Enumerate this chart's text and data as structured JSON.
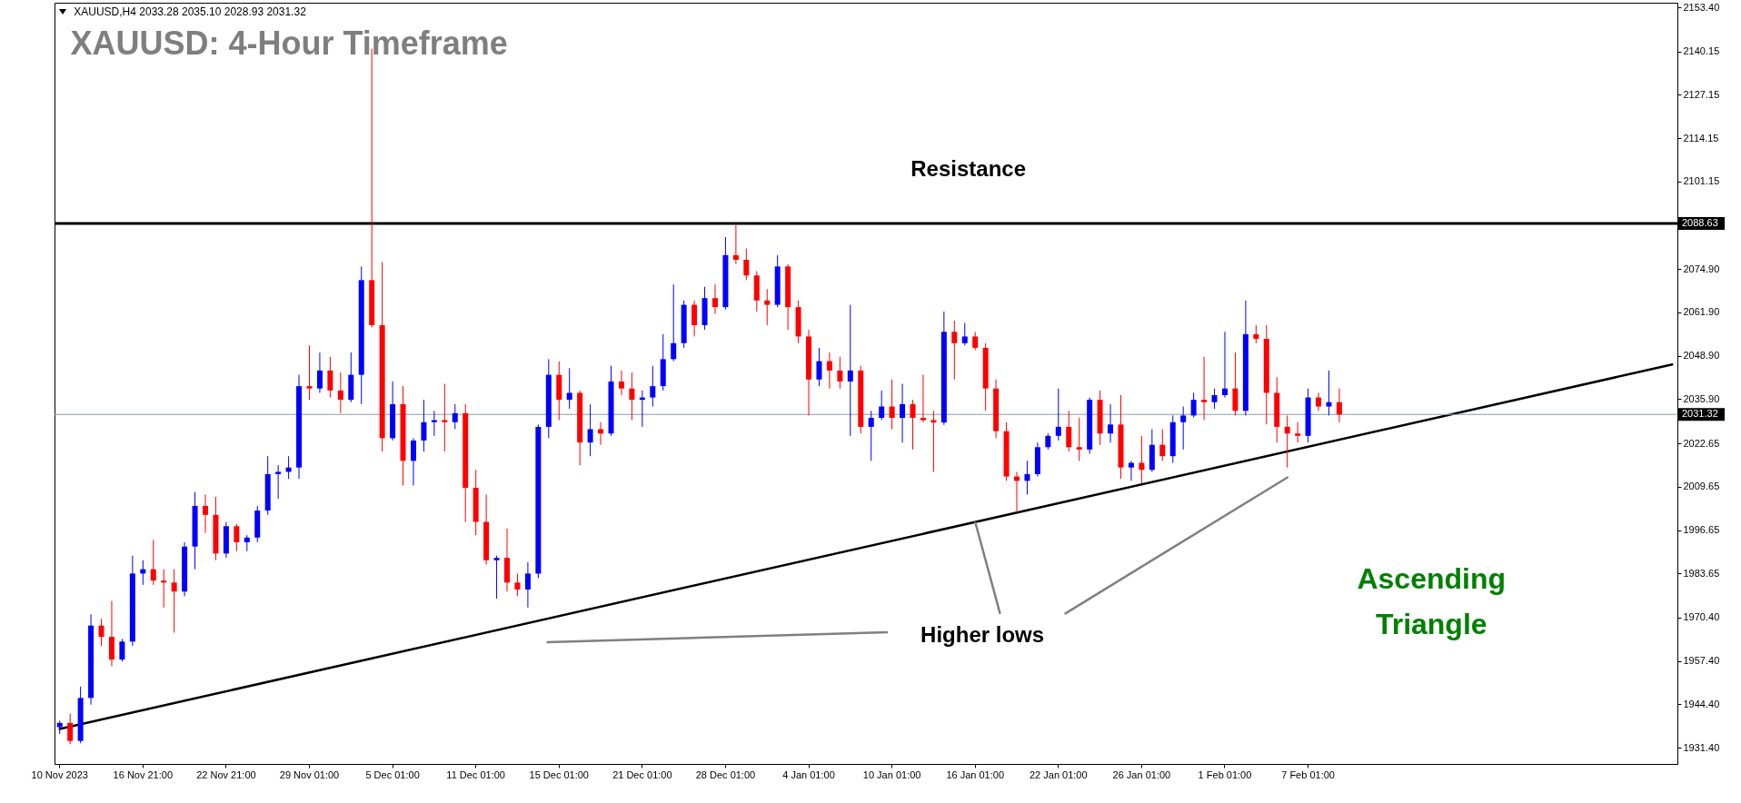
{
  "chart_data": {
    "type": "candlestick",
    "title": "XAUUSD: 4-Hour Timeframe",
    "annotations": [
      "XAUUSD,H4  2033.28 2035.10 2028.93 2031.32",
      "Resistance",
      {
        "text": "Higher lows",
        "x": "16 Jan 01:00",
        "y": 1999.1
      },
      "Ascending Triangle"
    ],
    "categories": [
      "10 Nov 2023",
      null,
      null,
      null,
      null,
      null,
      null,
      null,
      "16 Nov 21:00",
      null,
      null,
      null,
      null,
      null,
      null,
      null,
      "22 Nov 21:00",
      null,
      null,
      null,
      null,
      null,
      null,
      null,
      "29 Nov 01:00",
      null,
      null,
      null,
      null,
      null,
      null,
      null,
      "5 Dec 01:00",
      null,
      null,
      null,
      null,
      null,
      null,
      null,
      "11 Dec 01:00",
      null,
      null,
      null,
      null,
      null,
      null,
      null,
      "15 Dec 01:00",
      null,
      null,
      null,
      null,
      null,
      null,
      null,
      "21 Dec 01:00",
      null,
      null,
      null,
      null,
      null,
      null,
      null,
      "28 Dec 01:00",
      null,
      null,
      null,
      null,
      null,
      null,
      null,
      "4 Jan 01:00",
      null,
      null,
      null,
      null,
      null,
      null,
      null,
      "10 Jan 01:00",
      null,
      null,
      null,
      null,
      null,
      null,
      null,
      "16 Jan 01:00",
      null,
      null,
      null,
      null,
      null,
      null,
      null,
      "22 Jan 01:00",
      null,
      null,
      null,
      null,
      null,
      null,
      null,
      "26 Jan 01:00",
      null,
      null,
      null,
      null,
      null,
      null,
      null,
      "1 Feb 01:00",
      null,
      null,
      null,
      null,
      null,
      null,
      null,
      "7 Feb 01:00",
      null,
      null,
      null,
      null,
      null,
      null,
      null,
      null,
      null,
      null,
      null,
      null,
      null,
      null,
      null,
      null,
      null,
      null,
      null,
      null,
      null,
      null,
      null,
      null,
      null,
      null,
      null,
      null,
      null,
      null,
      null,
      null,
      null,
      null,
      null
    ],
    "ylim": [
      1926.5,
      2154.8
    ],
    "yticks": [
      {
        "value": 1931.4,
        "label": "1931.40"
      },
      {
        "value": 1944.4,
        "label": "1944.40"
      },
      {
        "value": 1957.4,
        "label": "1957.40"
      },
      {
        "value": 1970.4,
        "label": "1970.40"
      },
      1983.65,
      1996.65,
      2009.65,
      2022.65,
      {
        "value": 2035.9,
        "label": "2035.90"
      },
      {
        "value": 2048.9,
        "label": "2048.90"
      },
      {
        "value": 2061.9,
        "label": "2061.90"
      },
      {
        "value": 2074.9,
        "label": "2074.90"
      },
      2101.15,
      2114.15,
      2127.15,
      2140.15,
      {
        "value": 2153.4,
        "label": "2153.40"
      }
    ],
    "ohlc": [
      [
        1937.5,
        1939.5,
        1935.5,
        1938.8
      ],
      [
        1938.8,
        1941.6,
        1932.4,
        1933.4
      ],
      [
        1933.4,
        1949.7,
        1932.7,
        1946.3
      ],
      [
        1946.3,
        1971.4,
        1944.3,
        1968.0
      ],
      [
        1968.0,
        1970.0,
        1961.9,
        1964.6
      ],
      [
        1964.6,
        1975.4,
        1955.8,
        1957.8
      ],
      [
        1957.8,
        1964.0,
        1957.2,
        1963.2
      ],
      [
        1963.2,
        1989.0,
        1961.9,
        1983.6
      ],
      [
        1983.6,
        1987.6,
        1980.2,
        1984.9
      ],
      [
        1984.9,
        1993.7,
        1980.2,
        1981.5
      ],
      [
        1981.5,
        1984.9,
        1973.4,
        1980.9
      ],
      [
        1980.9,
        1984.9,
        1965.9,
        1978.2
      ],
      [
        1978.2,
        1993.0,
        1976.8,
        1991.7
      ],
      [
        1991.7,
        2008.0,
        1984.9,
        2003.9
      ],
      [
        2003.9,
        2007.3,
        1995.8,
        2001.2
      ],
      [
        2001.2,
        2006.6,
        1987.6,
        1989.6
      ],
      [
        1989.6,
        1999.1,
        1988.3,
        1997.8
      ],
      [
        1997.8,
        1998.5,
        1990.3,
        1993.0
      ],
      [
        1993.0,
        1995.1,
        1990.3,
        1994.4
      ],
      [
        1994.4,
        2003.9,
        1993.0,
        2002.5
      ],
      [
        2002.5,
        2018.8,
        2001.2,
        2013.4
      ],
      [
        2013.4,
        2016.1,
        2006.0,
        2014.1
      ],
      [
        2014.1,
        2018.8,
        2012.0,
        2015.4
      ],
      [
        2015.4,
        2043.2,
        2012.0,
        2039.8
      ],
      [
        2039.8,
        2052.0,
        2035.7,
        2039.1
      ],
      [
        2039.1,
        2049.9,
        2037.8,
        2044.5
      ],
      [
        2044.5,
        2048.6,
        2036.4,
        2038.5
      ],
      [
        2038.5,
        2043.9,
        2031.7,
        2035.7
      ],
      [
        2035.7,
        2049.9,
        2035.0,
        2043.2
      ],
      [
        2043.2,
        2075.7,
        2034.4,
        2071.6
      ],
      [
        2071.6,
        2141.0,
        2057.4,
        2058.1
      ],
      [
        2058.1,
        2077.0,
        2020.2,
        2024.2
      ],
      [
        2024.2,
        2041.2,
        2023.5,
        2034.4
      ],
      [
        2034.4,
        2039.8,
        2010.0,
        2017.4
      ],
      [
        2017.4,
        2024.2,
        2010.0,
        2023.5
      ],
      [
        2023.5,
        2035.7,
        2020.2,
        2029.0
      ],
      [
        2029.0,
        2032.4,
        2024.9,
        2029.6
      ],
      [
        2029.6,
        2040.5,
        2020.2,
        2029.0
      ],
      [
        2029.0,
        2034.4,
        2026.9,
        2031.7
      ],
      [
        2031.7,
        2034.4,
        1999.1,
        2009.3
      ],
      [
        2009.3,
        2014.7,
        1995.1,
        1999.1
      ],
      [
        1999.1,
        2007.3,
        1986.3,
        1987.6
      ],
      [
        1987.6,
        1989.0,
        1976.1,
        1988.3
      ],
      [
        1988.3,
        1997.1,
        1978.2,
        1980.9
      ],
      [
        1980.9,
        1983.6,
        1976.8,
        1978.8
      ],
      [
        1978.8,
        1987.0,
        1973.4,
        1983.6
      ],
      [
        1983.6,
        2028.3,
        1982.2,
        2027.6
      ],
      [
        2027.6,
        2047.9,
        2024.2,
        2043.2
      ],
      [
        2043.2,
        2047.2,
        2029.6,
        2035.7
      ],
      [
        2035.7,
        2045.2,
        2033.0,
        2037.8
      ],
      [
        2037.8,
        2038.5,
        2016.1,
        2022.9
      ],
      [
        2022.9,
        2034.4,
        2018.8,
        2026.9
      ],
      [
        2026.9,
        2029.0,
        2022.2,
        2025.6
      ],
      [
        2025.6,
        2045.9,
        2024.9,
        2041.2
      ],
      [
        2041.2,
        2044.5,
        2037.1,
        2039.1
      ],
      [
        2039.1,
        2043.9,
        2029.6,
        2035.7
      ],
      [
        2035.7,
        2038.5,
        2027.6,
        2036.4
      ],
      [
        2036.4,
        2045.9,
        2033.7,
        2039.8
      ],
      [
        2039.8,
        2055.4,
        2038.5,
        2047.9
      ],
      [
        2047.9,
        2070.3,
        2047.3,
        2052.7
      ],
      [
        2052.7,
        2065.5,
        2051.3,
        2064.2
      ],
      [
        2064.2,
        2065.5,
        2054.7,
        2058.1
      ],
      [
        2058.1,
        2069.6,
        2056.7,
        2066.2
      ],
      [
        2066.2,
        2070.3,
        2061.5,
        2063.5
      ],
      [
        2063.5,
        2084.5,
        2062.8,
        2079.1
      ],
      [
        2079.1,
        2088.6,
        2076.4,
        2077.7
      ],
      [
        2077.7,
        2081.1,
        2071.6,
        2073.0
      ],
      [
        2073.0,
        2074.3,
        2062.1,
        2065.5
      ],
      [
        2065.5,
        2068.9,
        2058.1,
        2064.2
      ],
      [
        2064.2,
        2079.1,
        2063.5,
        2075.7
      ],
      [
        2075.7,
        2076.4,
        2056.7,
        2063.5
      ],
      [
        2063.5,
        2065.5,
        2052.7,
        2054.7
      ],
      [
        2054.7,
        2056.7,
        2031.0,
        2041.8
      ],
      [
        2041.8,
        2051.3,
        2039.8,
        2047.3
      ],
      [
        2047.3,
        2049.9,
        2039.1,
        2044.5
      ],
      [
        2044.5,
        2048.6,
        2039.1,
        2041.2
      ],
      [
        2041.2,
        2064.2,
        2024.9,
        2044.5
      ],
      [
        2044.5,
        2045.9,
        2025.6,
        2027.6
      ],
      [
        2027.6,
        2032.4,
        2017.4,
        2030.3
      ],
      [
        2030.3,
        2038.5,
        2029.6,
        2033.7
      ],
      [
        2033.7,
        2041.8,
        2026.9,
        2030.3
      ],
      [
        2030.3,
        2040.5,
        2022.9,
        2034.4
      ],
      [
        2034.4,
        2035.7,
        2020.8,
        2030.3
      ],
      [
        2030.3,
        2043.2,
        2028.9,
        2029.6
      ],
      [
        2029.6,
        2032.4,
        2014.1,
        2028.9
      ],
      [
        2028.9,
        2062.2,
        2028.2,
        2056.1
      ],
      [
        2056.1,
        2059.5,
        2041.8,
        2052.7
      ],
      [
        2052.7,
        2058.8,
        2052.0,
        2054.7
      ],
      [
        2054.7,
        2056.1,
        2050.6,
        2051.3
      ],
      [
        2051.3,
        2052.7,
        2032.4,
        2039.1
      ],
      [
        2039.1,
        2041.8,
        2024.2,
        2026.3
      ],
      [
        2026.3,
        2029.0,
        2011.4,
        2012.7
      ],
      [
        2012.7,
        2014.1,
        2001.9,
        2011.4
      ],
      [
        2011.4,
        2017.4,
        2007.3,
        2013.4
      ],
      [
        2013.4,
        2022.9,
        2012.7,
        2021.5
      ],
      [
        2021.5,
        2025.6,
        2020.8,
        2024.9
      ],
      [
        2024.9,
        2039.1,
        2023.5,
        2027.6
      ],
      [
        2027.6,
        2032.4,
        2020.2,
        2021.5
      ],
      [
        2021.5,
        2030.3,
        2017.4,
        2020.8
      ],
      [
        2020.8,
        2036.4,
        2019.5,
        2035.7
      ],
      [
        2035.7,
        2038.5,
        2022.2,
        2025.6
      ],
      [
        2025.6,
        2034.4,
        2022.9,
        2028.3
      ],
      [
        2028.3,
        2037.1,
        2012.0,
        2015.4
      ],
      [
        2015.4,
        2017.4,
        2011.4,
        2016.8
      ],
      [
        2016.8,
        2024.9,
        2010.7,
        2014.7
      ],
      [
        2014.7,
        2026.9,
        2014.1,
        2022.2
      ],
      [
        2022.2,
        2026.9,
        2017.4,
        2018.8
      ],
      [
        2018.8,
        2031.0,
        2016.8,
        2029.0
      ],
      [
        2029.0,
        2033.7,
        2020.8,
        2031.0
      ],
      [
        2031.0,
        2037.8,
        2030.4,
        2035.7
      ],
      [
        2035.7,
        2048.6,
        2029.6,
        2035.0
      ],
      [
        2035.0,
        2039.1,
        2033.0,
        2037.1
      ],
      [
        2037.1,
        2056.1,
        2036.4,
        2039.1
      ],
      [
        2039.1,
        2049.9,
        2031.0,
        2032.4
      ],
      [
        2032.4,
        2065.5,
        2031.0,
        2055.4
      ],
      [
        2055.4,
        2058.1,
        2052.7,
        2054.0
      ],
      [
        2054.0,
        2058.1,
        2028.3,
        2037.8
      ],
      [
        2037.8,
        2042.5,
        2022.9,
        2027.6
      ],
      [
        2027.6,
        2031.0,
        2015.4,
        2025.6
      ],
      [
        2025.6,
        2029.0,
        2022.9,
        2024.9
      ],
      [
        2024.9,
        2039.1,
        2022.9,
        2036.4
      ],
      [
        2036.4,
        2037.8,
        2032.4,
        2033.7
      ],
      [
        2033.7,
        2044.5,
        2031.0,
        2035.0
      ],
      [
        2035.0,
        2039.1,
        2028.9,
        2031.3
      ],
      null,
      null,
      null,
      null,
      null,
      null,
      null,
      null,
      null,
      null,
      null,
      null,
      null,
      null,
      null,
      null,
      null,
      null,
      null,
      null,
      null,
      null,
      null,
      null,
      null,
      null,
      null,
      null,
      null,
      null,
      null,
      null
    ],
    "colors": [
      "#0000ff",
      "#ff0000",
      "#0000ff",
      "#0000ff",
      "#ff0000",
      "#ff0000",
      "#0000ff",
      "#0000ff",
      "#0000ff",
      "#ff0000",
      "#ff0000",
      "#ff0000",
      "#0000ff",
      "#0000ff",
      "#ff0000",
      "#ff0000",
      "#0000ff",
      "#ff0000",
      "#0000ff",
      "#0000ff",
      "#0000ff",
      "#0000ff",
      "#0000ff",
      "#0000ff",
      "#ff0000",
      "#0000ff",
      "#ff0000",
      "#ff0000",
      "#0000ff",
      "#0000ff",
      "#ff0000",
      "#ff0000",
      "#0000ff",
      "#ff0000",
      "#0000ff",
      "#0000ff",
      "#0000ff",
      "#ff0000",
      "#0000ff",
      "#ff0000",
      "#ff0000",
      "#ff0000",
      "#0000ff",
      "#ff0000",
      "#ff0000",
      "#0000ff",
      "#0000ff",
      "#0000ff",
      "#ff0000",
      "#0000ff",
      "#ff0000",
      "#0000ff",
      "#ff0000",
      "#0000ff",
      "#ff0000",
      "#ff0000",
      "#0000ff",
      "#0000ff",
      "#0000ff",
      "#0000ff",
      "#0000ff",
      "#ff0000",
      "#0000ff",
      "#ff0000",
      "#0000ff",
      "#ff0000",
      "#ff0000",
      "#ff0000",
      "#ff0000",
      "#0000ff",
      "#ff0000",
      "#ff0000",
      "#ff0000",
      "#0000ff",
      "#ff0000",
      "#ff0000",
      "#0000ff",
      "#ff0000",
      "#0000ff",
      "#0000ff",
      "#ff0000",
      "#0000ff",
      "#ff0000",
      "#ff0000",
      "#ff0000",
      "#0000ff",
      "#ff0000",
      "#0000ff",
      "#ff0000",
      "#ff0000",
      "#ff0000",
      "#ff0000",
      "#ff0000",
      "#0000ff",
      "#0000ff",
      "#0000ff",
      "#0000ff",
      "#ff0000",
      "#ff0000",
      "#0000ff",
      "#ff0000",
      "#0000ff",
      "#ff0000",
      "#0000ff",
      "#ff0000",
      "#0000ff",
      "#ff0000",
      "#0000ff",
      "#0000ff",
      "#0000ff",
      "#ff0000",
      "#0000ff",
      "#0000ff",
      "#ff0000",
      "#0000ff",
      "#ff0000",
      "#ff0000",
      "#ff0000",
      "#ff0000",
      "#ff0000",
      "#0000ff",
      "#ff0000",
      "#0000ff",
      "#ff0000",
      null,
      null,
      null,
      null,
      null,
      null,
      null,
      null,
      null,
      null,
      null,
      null,
      null,
      null,
      null,
      null,
      null,
      null,
      null,
      null,
      null,
      null,
      null,
      null,
      null,
      null,
      null,
      null,
      null,
      null,
      null,
      null
    ],
    "series": [
      {
        "type": "line",
        "color": "#000000",
        "values": [
          1937.0,
          null,
          null,
          null,
          null,
          null,
          null,
          null,
          null,
          null,
          null,
          null,
          null,
          null,
          null,
          null,
          null,
          null,
          null,
          null,
          null,
          null,
          null,
          null,
          null,
          null,
          null,
          null,
          null,
          null,
          null,
          null,
          null,
          null,
          null,
          null,
          null,
          null,
          null,
          null,
          null,
          null,
          null,
          null,
          null,
          null,
          null,
          null,
          null,
          null,
          null,
          null,
          null,
          null,
          null,
          null,
          null,
          null,
          null,
          null,
          null,
          null,
          null,
          null,
          null,
          null,
          null,
          null,
          null,
          null,
          null,
          null,
          null,
          null,
          null,
          null,
          null,
          null,
          null,
          null,
          null,
          null,
          null,
          null,
          null,
          null,
          null,
          null,
          null,
          null,
          null,
          null,
          null,
          null,
          null,
          null,
          null,
          null,
          null,
          null,
          null,
          null,
          null,
          null,
          null,
          null,
          null,
          null,
          null,
          null,
          null,
          null,
          null,
          null,
          null,
          null,
          null,
          null,
          null,
          null,
          null,
          null,
          null,
          null,
          null,
          null,
          null,
          null,
          null,
          null,
          null,
          null,
          null,
          null,
          null,
          null,
          null,
          null,
          null,
          null,
          null,
          null,
          null,
          null,
          null,
          null,
          null,
          null,
          null,
          null,
          null,
          null,
          null,
          null,
          null,
          2046.3
        ]
      }
    ],
    "ref_lines": [
      {
        "axis": "y",
        "value": 2088.63,
        "label": "2088.63",
        "color": "#000000"
      },
      {
        "axis": "y",
        "value": 2031.32,
        "label": "2031.32",
        "color": "#8c9aa8"
      }
    ]
  }
}
